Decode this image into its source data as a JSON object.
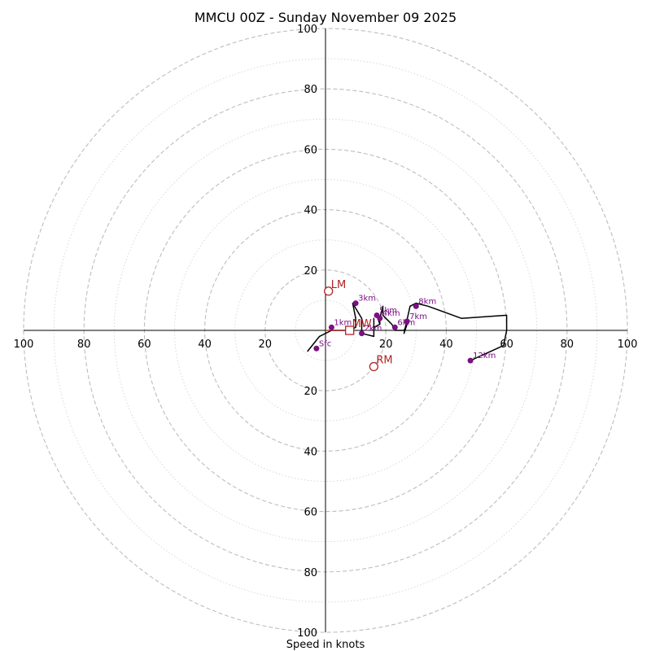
{
  "chart_data": {
    "type": "hodograph",
    "title": "MMCU 00Z - Sunday November 09 2025",
    "xlabel": "Speed in knots",
    "xlim": [
      -100,
      100
    ],
    "ylim": [
      -100,
      100
    ],
    "major_ring_step": 20,
    "minor_ring_step": 10,
    "x_ticks": [
      -100,
      -80,
      -60,
      -40,
      -20,
      20,
      40,
      60,
      80,
      100
    ],
    "y_ticks": [
      -100,
      -80,
      -60,
      -40,
      -20,
      20,
      40,
      60,
      80,
      100
    ],
    "tick_labels_abs": true,
    "hodograph_trace": [
      [
        -6,
        -7
      ],
      [
        -2,
        -2
      ],
      [
        2,
        0
      ],
      [
        8,
        0
      ],
      [
        10,
        1
      ],
      [
        10,
        4
      ],
      [
        9,
        9
      ],
      [
        12,
        4
      ],
      [
        12,
        -1
      ],
      [
        16,
        -2
      ],
      [
        16,
        4
      ],
      [
        16,
        1
      ],
      [
        18,
        2
      ],
      [
        17,
        5
      ],
      [
        18,
        2
      ],
      [
        18,
        4
      ],
      [
        19,
        8
      ],
      [
        19,
        5
      ],
      [
        20,
        4
      ],
      [
        22,
        2
      ],
      [
        23,
        0
      ],
      [
        26,
        0
      ],
      [
        27,
        2
      ],
      [
        26,
        -1
      ],
      [
        28,
        8
      ],
      [
        30,
        9
      ],
      [
        34,
        8
      ],
      [
        45,
        4
      ],
      [
        60,
        5
      ],
      [
        60,
        0
      ],
      [
        59,
        -5
      ],
      [
        48,
        -10
      ]
    ],
    "height_points": [
      {
        "label": "Sfc",
        "u": -3,
        "v": -6
      },
      {
        "label": "1km",
        "u": 2,
        "v": 1
      },
      {
        "label": "2km",
        "u": 12,
        "v": -1
      },
      {
        "label": "3km",
        "u": 10,
        "v": 9
      },
      {
        "label": "4km",
        "u": 18,
        "v": 4
      },
      {
        "label": "5km",
        "u": 17,
        "v": 5
      },
      {
        "label": "6km",
        "u": 23,
        "v": 1
      },
      {
        "label": "7km",
        "u": 27,
        "v": 3
      },
      {
        "label": "8km",
        "u": 30,
        "v": 8
      },
      {
        "label": "12km",
        "u": 48,
        "v": -10
      }
    ],
    "storm_motions": [
      {
        "label": "LM",
        "u": 1,
        "v": 13,
        "marker": "circle"
      },
      {
        "label": "RM",
        "u": 16,
        "v": -12,
        "marker": "circle"
      },
      {
        "label": "MW",
        "u": 8,
        "v": 0,
        "marker": "square"
      }
    ],
    "colors": {
      "trace": "#000000",
      "height_points": "#7b0f84",
      "storm_motion": "#b22222",
      "rings": "#bdbdbd"
    }
  }
}
